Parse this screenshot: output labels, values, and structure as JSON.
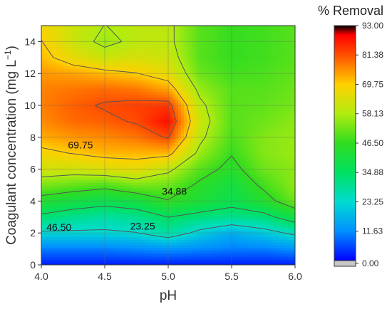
{
  "chart_data": {
    "type": "heatmap",
    "title": "",
    "xlabel": "pH",
    "ylabel_main": "Coagulant concentration (mg L",
    "ylabel_sup": "−1",
    "ylabel_close": ")",
    "xlim": [
      4.0,
      6.0
    ],
    "ylim": [
      0,
      15
    ],
    "x_ticks": [
      "4.0",
      "4.5",
      "5.0",
      "5.5",
      "6.0"
    ],
    "y_ticks": [
      "0",
      "2",
      "4",
      "6",
      "8",
      "10",
      "12",
      "14"
    ],
    "grid": true,
    "colorbar": {
      "title": "% Removal",
      "ticks": [
        "0.00",
        "11.63",
        "23.25",
        "34.88",
        "46.50",
        "58.13",
        "69.75",
        "81.38",
        "93.00"
      ],
      "range": [
        0,
        93
      ]
    },
    "contour_levels": [
      23.25,
      34.88,
      46.5,
      58.13,
      69.75,
      81.38
    ],
    "contour_labels": [
      "69.75",
      "34.88",
      "46.50",
      "23.25"
    ],
    "x": [
      4.0,
      4.25,
      4.5,
      4.75,
      5.0,
      5.25,
      5.5,
      5.75,
      6.0
    ],
    "y": [
      0,
      1,
      2,
      3,
      4,
      5,
      6,
      7,
      8,
      9,
      10,
      11,
      12,
      13,
      14,
      15
    ],
    "z": [
      [
        2,
        2,
        2,
        2,
        2,
        2,
        2,
        2,
        2
      ],
      [
        10,
        10,
        10,
        11,
        12,
        11,
        10,
        10,
        12
      ],
      [
        22,
        22,
        22,
        23,
        28,
        21,
        16,
        20,
        25
      ],
      [
        33,
        30,
        28,
        30,
        35,
        32,
        30,
        32,
        40
      ],
      [
        43,
        40,
        38,
        40,
        46,
        42,
        38,
        43,
        52
      ],
      [
        53,
        51,
        49,
        53,
        52,
        45,
        40,
        48,
        55
      ],
      [
        63,
        62,
        64,
        66,
        60,
        50,
        44,
        52,
        55
      ],
      [
        68,
        70,
        72,
        72,
        72,
        56,
        47,
        54,
        56
      ],
      [
        73,
        75,
        76,
        78,
        82,
        60,
        49,
        54,
        56
      ],
      [
        76,
        79,
        80,
        82,
        88,
        62,
        50,
        52,
        55
      ],
      [
        77,
        80,
        82,
        83,
        84,
        60,
        50,
        51,
        53
      ],
      [
        77,
        78,
        79,
        78,
        74,
        56,
        50,
        50,
        52
      ],
      [
        75,
        74,
        72,
        70,
        66,
        52,
        48,
        49,
        51
      ],
      [
        72,
        66,
        62,
        64,
        62,
        50,
        47,
        48,
        50
      ],
      [
        70,
        62,
        56,
        60,
        60,
        50,
        47,
        48,
        50
      ],
      [
        68,
        62,
        58,
        60,
        60,
        50,
        47,
        48,
        50
      ]
    ]
  }
}
